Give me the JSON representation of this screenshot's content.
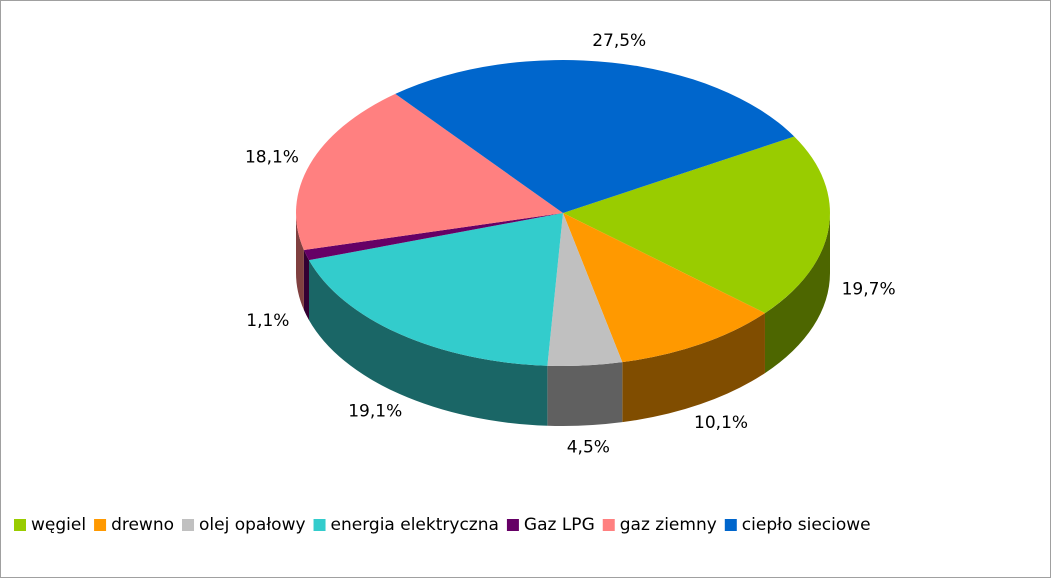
{
  "chart_data": {
    "type": "pie3d",
    "categories": [
      "węgiel",
      "drewno",
      "olej opałowy",
      "energia elektryczna",
      "Gaz LPG",
      "gaz ziemny",
      "ciepło sieciowe"
    ],
    "values": [
      19.7,
      10.1,
      4.5,
      19.1,
      1.1,
      18.1,
      27.5
    ],
    "value_labels": [
      "19,7%",
      "10,1%",
      "4,5%",
      "19,1%",
      "1,1%",
      "18,1%",
      "27,5%"
    ],
    "colors": [
      "#99cc00",
      "#ff9900",
      "#c0c0c0",
      "#33cccc",
      "#660066",
      "#ff8080",
      "#0066cc"
    ],
    "legend": "bottom"
  }
}
